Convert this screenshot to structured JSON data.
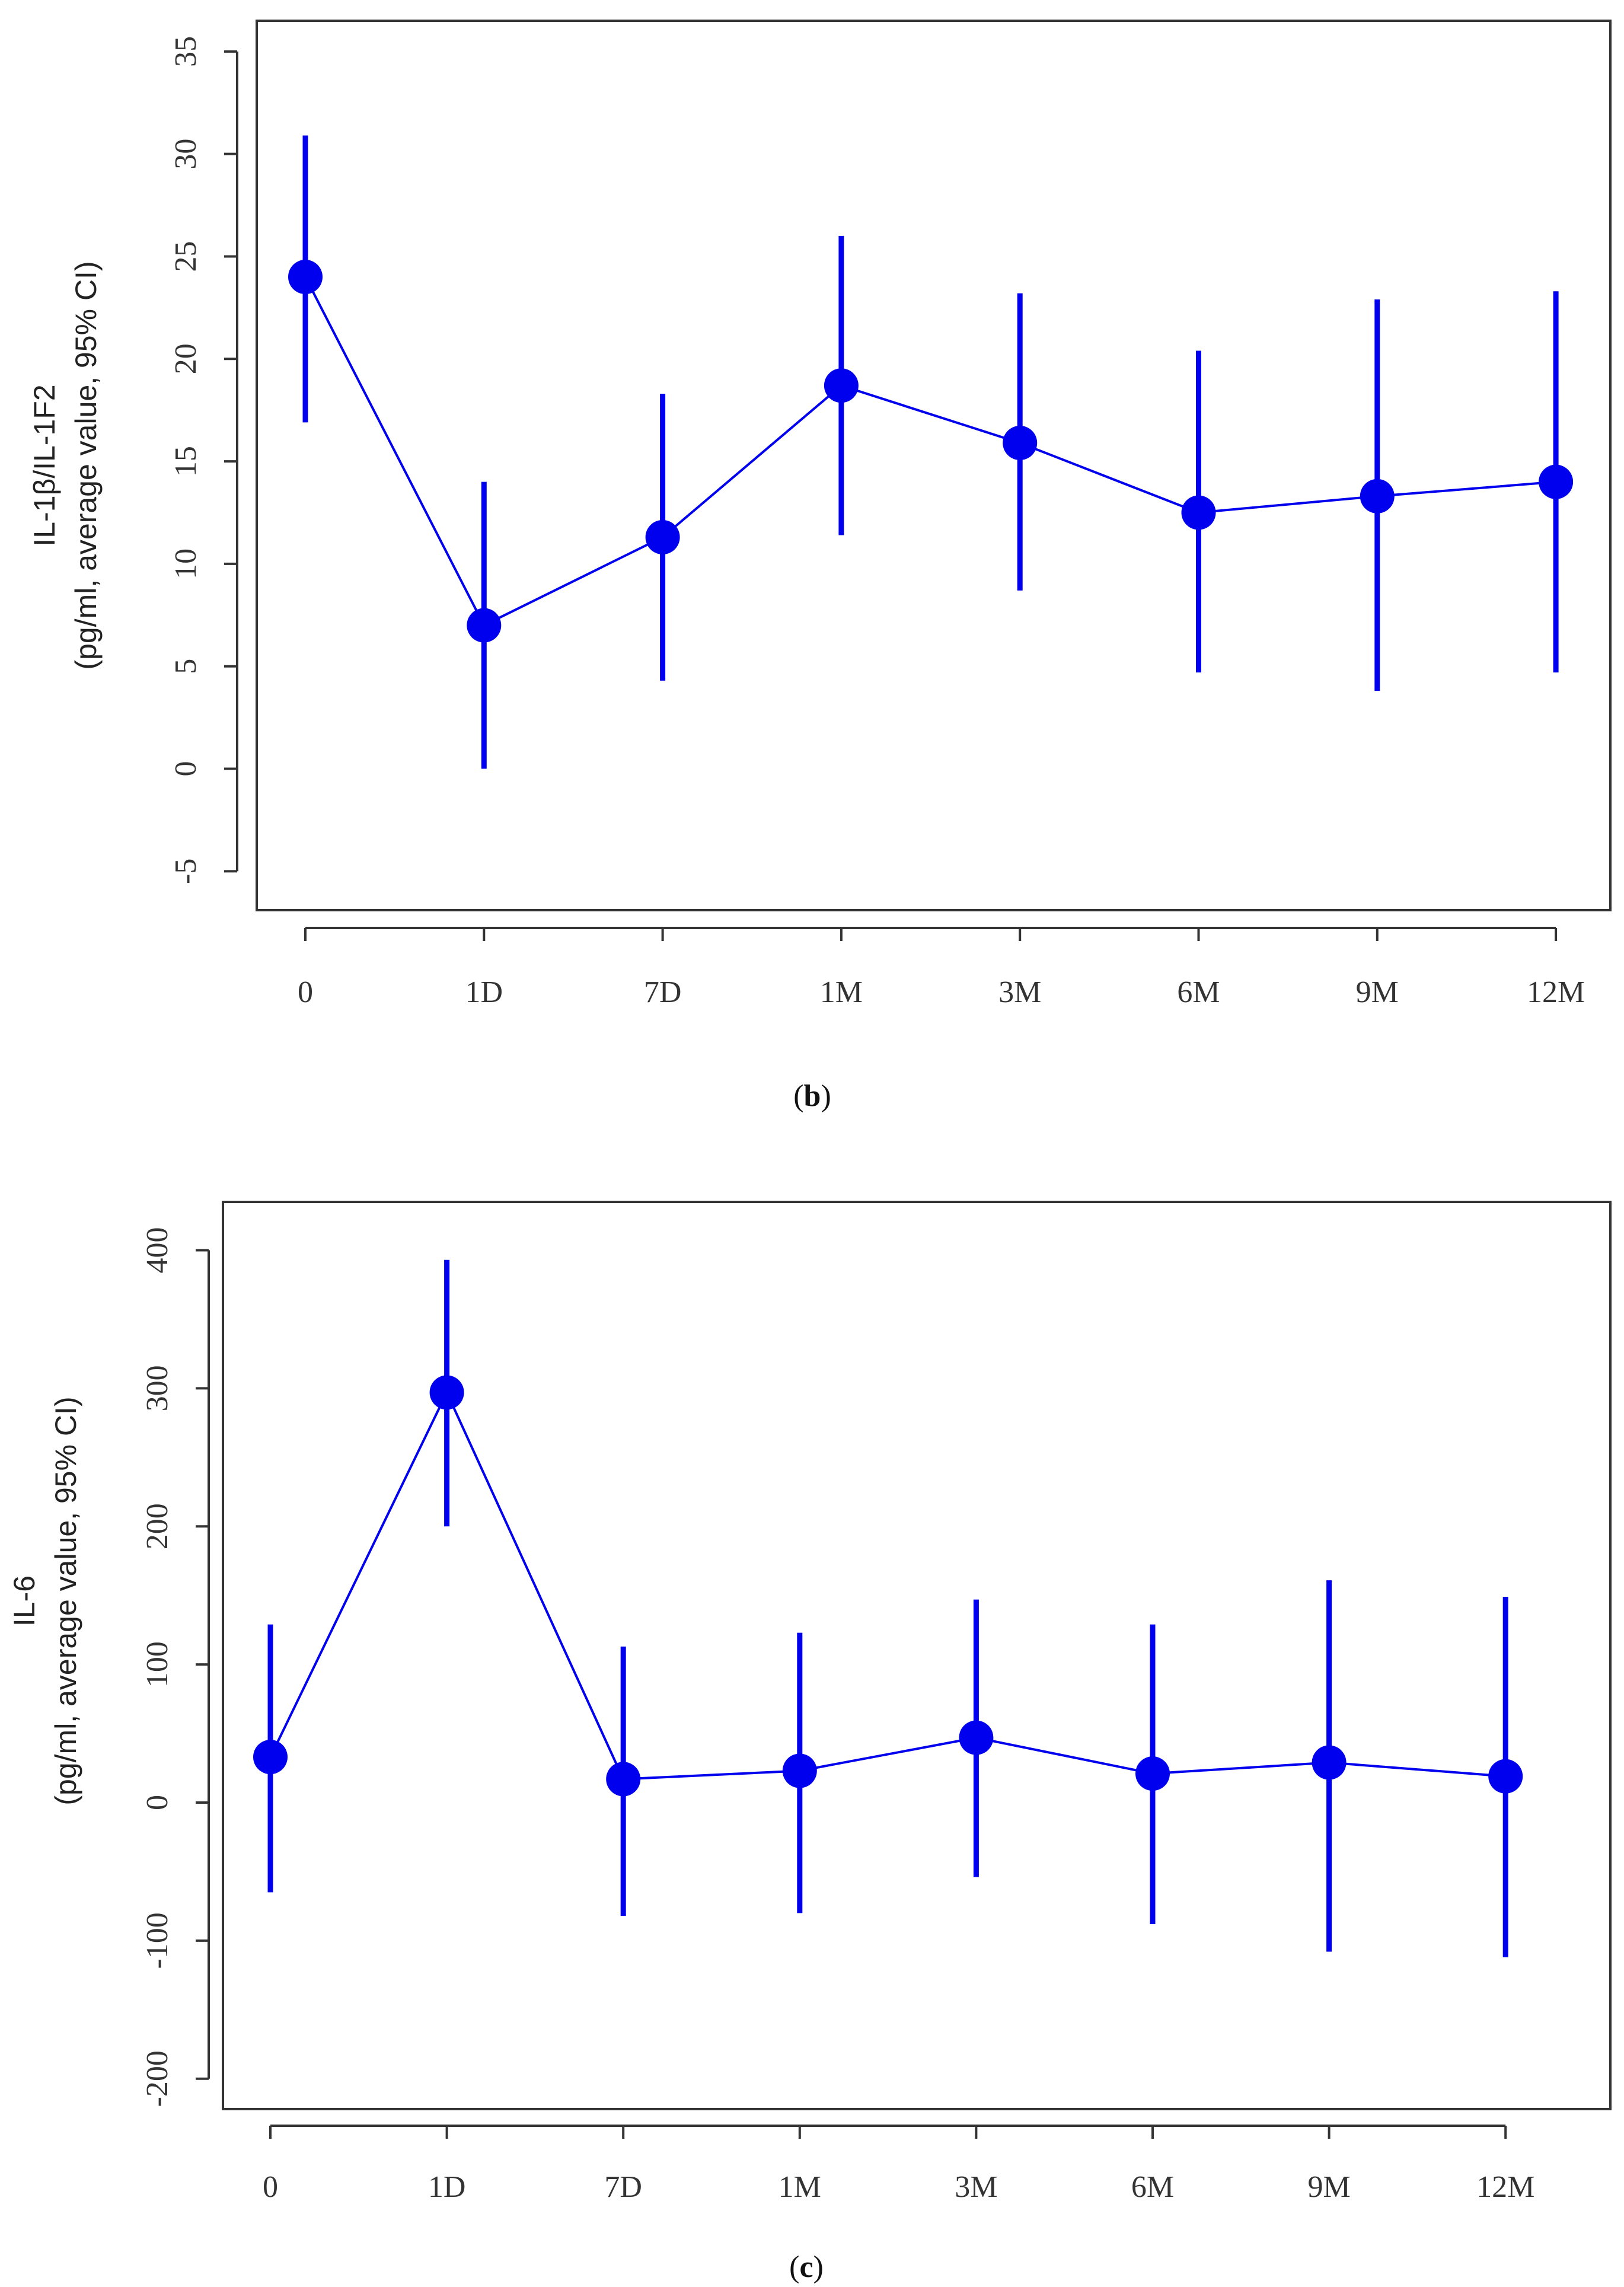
{
  "chart_data": [
    {
      "type": "line",
      "panel_label": "b",
      "ylabel_line1": "IL-1β/IL-1F2",
      "ylabel_line2": "(pg/ml, average value, 95% CI)",
      "categories": [
        "0",
        "1D",
        "7D",
        "1M",
        "3M",
        "6M",
        "9M",
        "12M"
      ],
      "series": [
        {
          "name": "IL-1β/IL-1F2",
          "values": [
            24,
            7,
            11.3,
            18.7,
            15.9,
            12.5,
            13.3,
            14
          ],
          "ci_low": [
            16.9,
            0,
            4.3,
            11.4,
            8.7,
            4.7,
            3.8,
            4.7
          ],
          "ci_high": [
            30.9,
            14,
            18.3,
            26,
            23.2,
            20.4,
            22.9,
            23.3
          ]
        }
      ],
      "yticks": [
        -5,
        0,
        5,
        10,
        15,
        20,
        25,
        30,
        35
      ],
      "ytick_labels": [
        "-5",
        "0",
        "5",
        "10",
        "15",
        "20",
        "25",
        "30",
        "35"
      ],
      "ylim": [
        -6.9,
        36.5
      ],
      "color": "#0000ee"
    },
    {
      "type": "line",
      "panel_label": "c",
      "ylabel_line1": "IL-6",
      "ylabel_line2": "(pg/ml, average value, 95% CI)",
      "categories": [
        "0",
        "1D",
        "7D",
        "1M",
        "3M",
        "6M",
        "9M",
        "12M"
      ],
      "series": [
        {
          "name": "IL-6",
          "values": [
            33,
            297,
            17,
            23,
            47,
            21,
            29,
            19
          ],
          "ci_low": [
            -65,
            200,
            -82,
            -80,
            -54,
            -88,
            -108,
            -112
          ],
          "ci_high": [
            129,
            393,
            113,
            123,
            147,
            129,
            161,
            149
          ]
        }
      ],
      "yticks": [
        -200,
        -100,
        0,
        100,
        200,
        300,
        400
      ],
      "ytick_labels": [
        "-200",
        "-100",
        "0",
        "100",
        "200",
        "300",
        "400"
      ],
      "ylim": [
        -222,
        435
      ],
      "color": "#0000ee"
    }
  ]
}
